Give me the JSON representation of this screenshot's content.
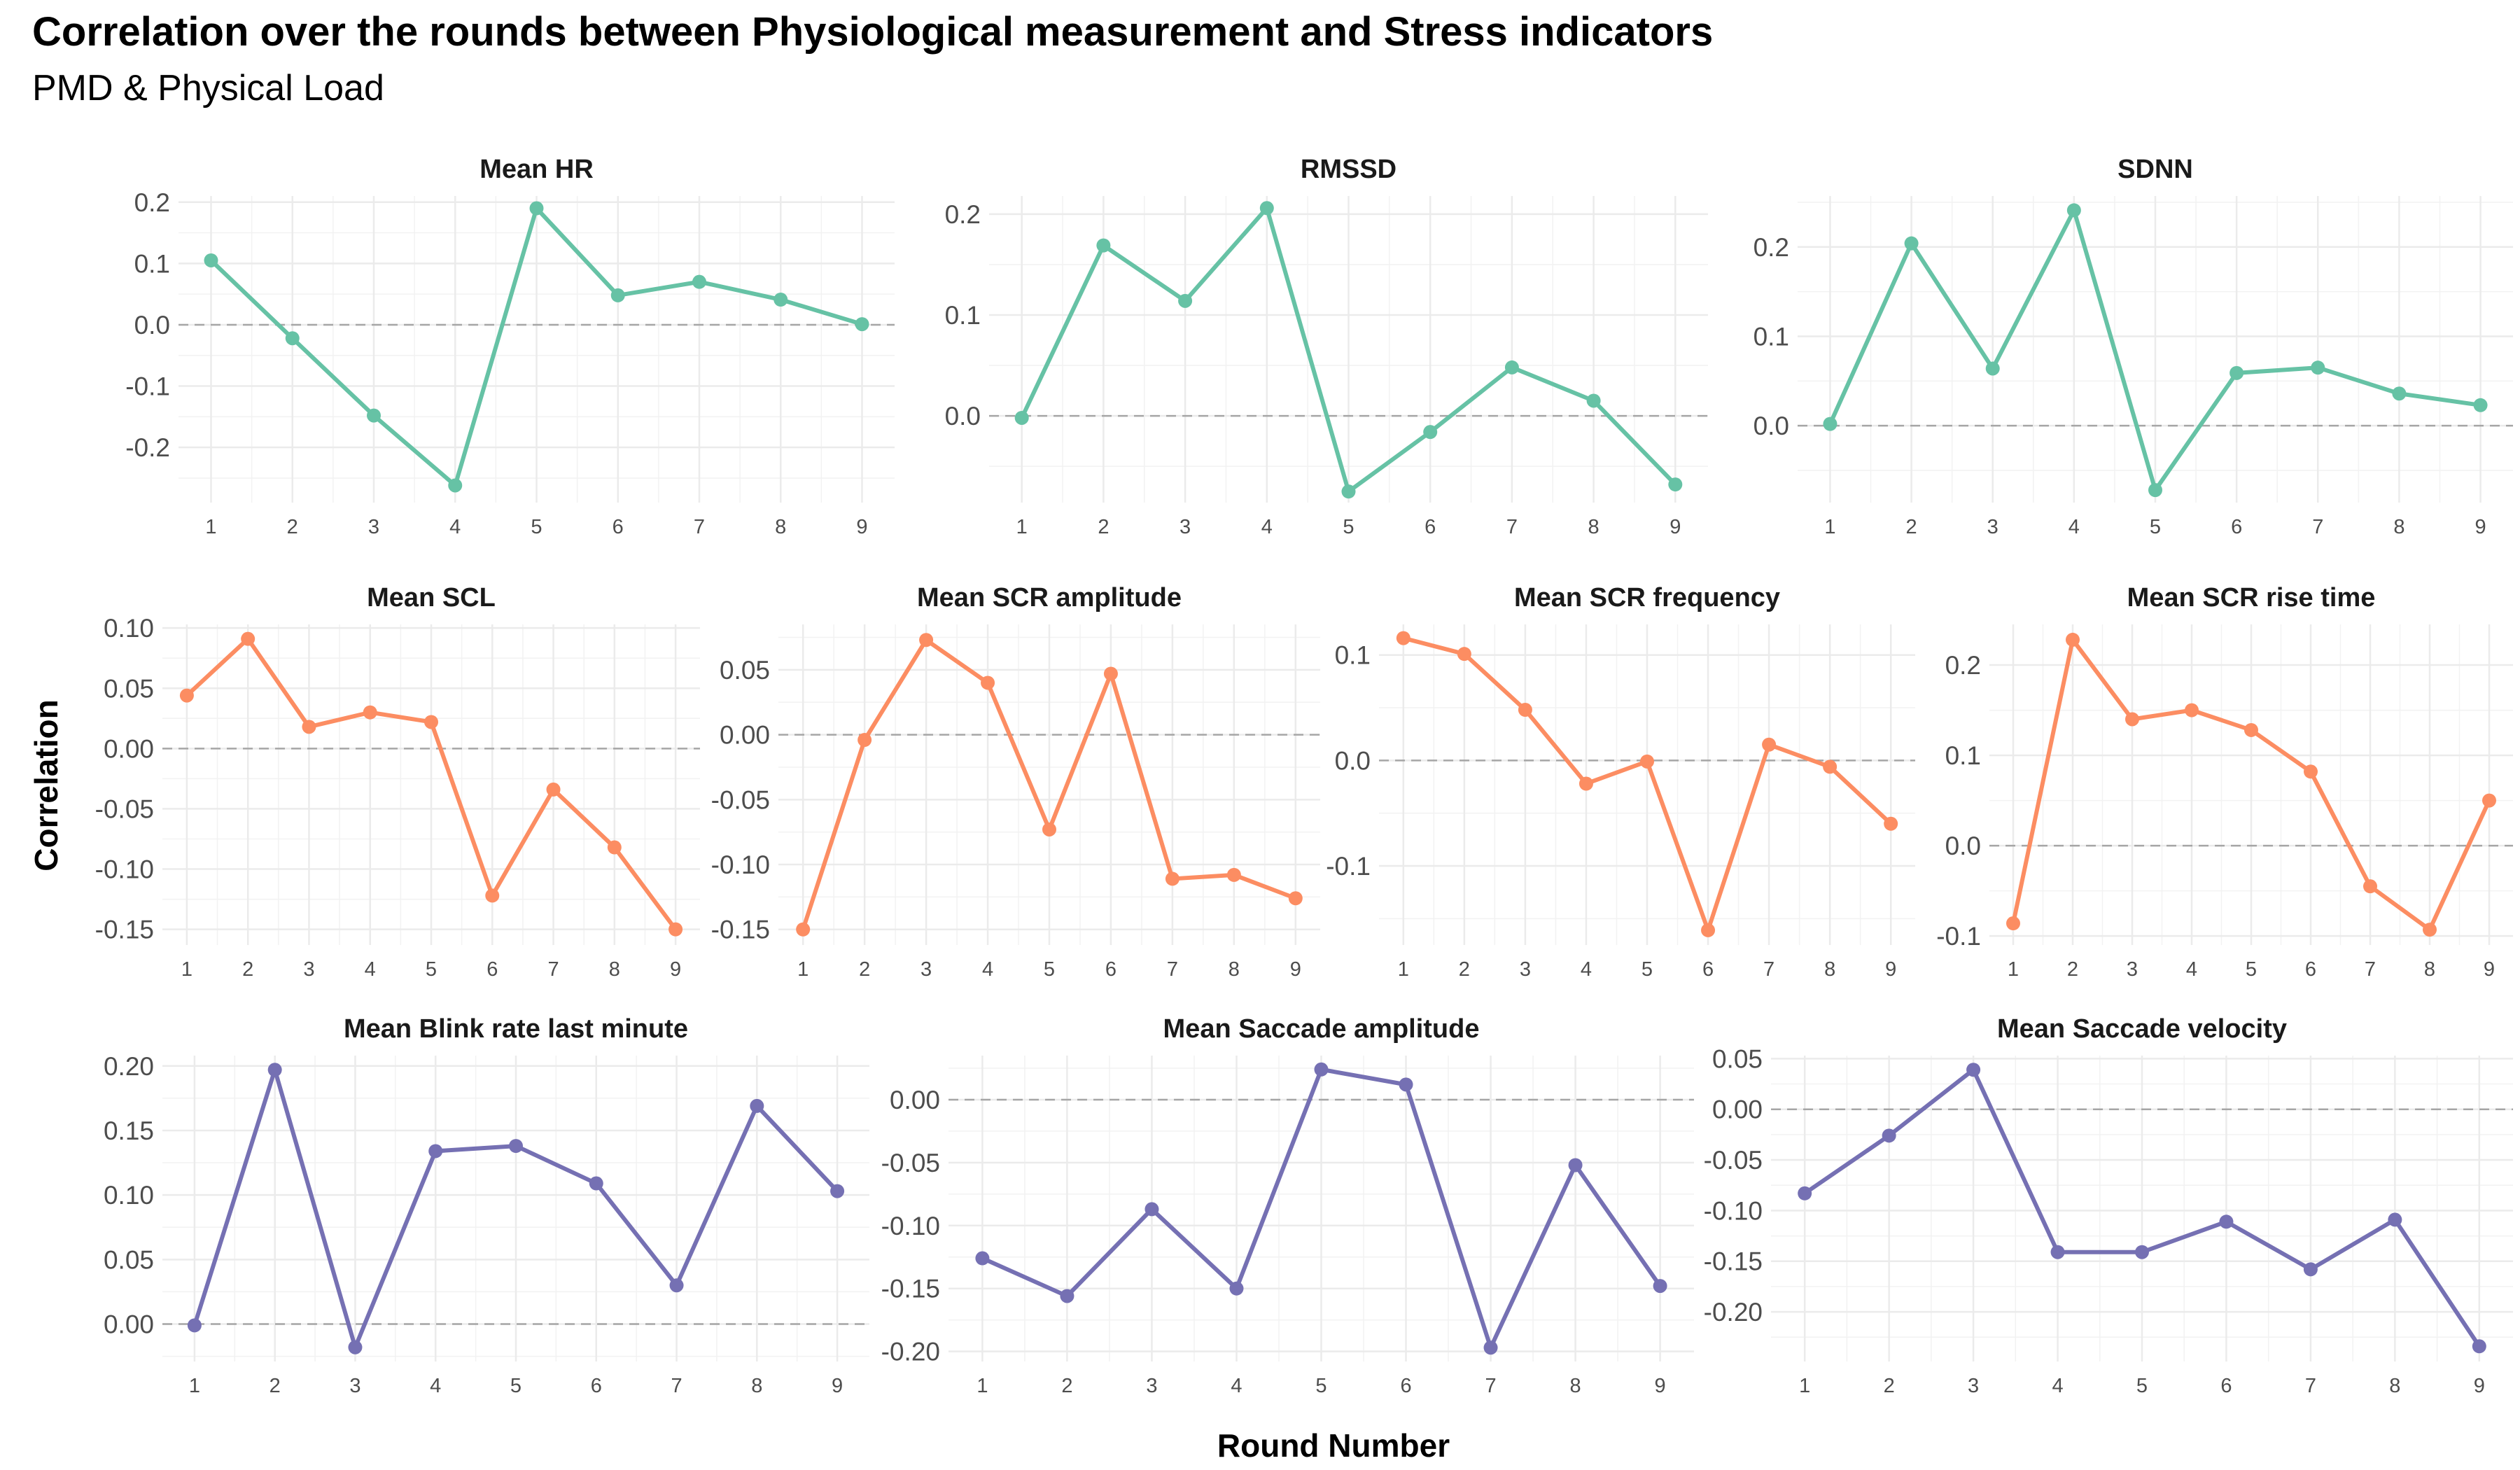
{
  "title": "Correlation over the rounds between Physiological measurement and Stress indicators",
  "subtitle": "PMD & Physical Load",
  "xlabel": "Round Number",
  "ylabel": "Correlation",
  "colors": {
    "green": "#66c2a5",
    "orange": "#fc8d62",
    "purple": "#7570b3",
    "grid": "#ebebeb",
    "zero_line": "#a6a6a6"
  },
  "chart_data": [
    {
      "type": "line",
      "title": "Mean HR",
      "color": "#66c2a5",
      "x": [
        1,
        2,
        3,
        4,
        5,
        6,
        7,
        8,
        9
      ],
      "values": [
        0.105,
        -0.022,
        -0.148,
        -0.262,
        0.19,
        0.048,
        0.07,
        0.041,
        0.001
      ],
      "ylim": [
        -0.29,
        0.21
      ],
      "yticks": [
        -0.2,
        -0.1,
        0.0,
        0.1,
        0.2
      ],
      "ytick_labels": [
        "-0.2",
        "-0.1",
        "0.0",
        "0.1",
        "0.2"
      ]
    },
    {
      "type": "line",
      "title": "RMSSD",
      "color": "#66c2a5",
      "x": [
        1,
        2,
        3,
        4,
        5,
        6,
        7,
        8,
        9
      ],
      "values": [
        -0.002,
        0.169,
        0.114,
        0.206,
        -0.075,
        -0.016,
        0.048,
        0.015,
        -0.068
      ],
      "ylim": [
        -0.086,
        0.218
      ],
      "yticks": [
        0.0,
        0.1,
        0.2
      ],
      "ytick_labels": [
        "0.0",
        "0.1",
        "0.2"
      ]
    },
    {
      "type": "line",
      "title": "SDNN",
      "color": "#66c2a5",
      "x": [
        1,
        2,
        3,
        4,
        5,
        6,
        7,
        8,
        9
      ],
      "values": [
        0.002,
        0.204,
        0.064,
        0.241,
        -0.072,
        0.059,
        0.065,
        0.036,
        0.023
      ],
      "ylim": [
        -0.086,
        0.257
      ],
      "yticks": [
        0.0,
        0.1,
        0.2
      ],
      "ytick_labels": [
        "0.0",
        "0.1",
        "0.2"
      ]
    },
    {
      "type": "line",
      "title": "Mean SCL",
      "color": "#fc8d62",
      "x": [
        1,
        2,
        3,
        4,
        5,
        6,
        7,
        8,
        9
      ],
      "values": [
        0.044,
        0.091,
        0.018,
        0.03,
        0.022,
        -0.122,
        -0.034,
        -0.082,
        -0.15
      ],
      "ylim": [
        -0.163,
        0.103
      ],
      "yticks": [
        -0.15,
        -0.1,
        -0.05,
        0.0,
        0.05,
        0.1
      ],
      "ytick_labels": [
        "-0.15",
        "-0.10",
        "-0.05",
        "0.00",
        "0.05",
        "0.10"
      ]
    },
    {
      "type": "line",
      "title": "Mean SCR amplitude",
      "color": "#fc8d62",
      "x": [
        1,
        2,
        3,
        4,
        5,
        6,
        7,
        8,
        9
      ],
      "values": [
        -0.15,
        -0.004,
        0.073,
        0.04,
        -0.073,
        0.047,
        -0.111,
        -0.108,
        -0.126
      ],
      "ylim": [
        -0.162,
        0.085
      ],
      "yticks": [
        -0.15,
        -0.1,
        -0.05,
        0.0,
        0.05
      ],
      "ytick_labels": [
        "-0.15",
        "-0.10",
        "-0.05",
        "0.00",
        "0.05"
      ]
    },
    {
      "type": "line",
      "title": "Mean SCR frequency",
      "color": "#fc8d62",
      "x": [
        1,
        2,
        3,
        4,
        5,
        6,
        7,
        8,
        9
      ],
      "values": [
        0.116,
        0.101,
        0.048,
        -0.022,
        -0.001,
        -0.161,
        0.015,
        -0.006,
        -0.06
      ],
      "ylim": [
        -0.175,
        0.129
      ],
      "yticks": [
        -0.1,
        0.0,
        0.1
      ],
      "ytick_labels": [
        "-0.1",
        "0.0",
        "0.1"
      ]
    },
    {
      "type": "line",
      "title": "Mean SCR rise time",
      "color": "#fc8d62",
      "x": [
        1,
        2,
        3,
        4,
        5,
        6,
        7,
        8,
        9
      ],
      "values": [
        -0.086,
        0.228,
        0.14,
        0.15,
        0.128,
        0.082,
        -0.045,
        -0.093,
        0.05
      ],
      "ylim": [
        -0.11,
        0.245
      ],
      "yticks": [
        -0.1,
        0.0,
        0.1,
        0.2
      ],
      "ytick_labels": [
        "-0.1",
        "0.0",
        "0.1",
        "0.2"
      ]
    },
    {
      "type": "line",
      "title": "Mean Blink rate last minute",
      "color": "#7570b3",
      "x": [
        1,
        2,
        3,
        4,
        5,
        6,
        7,
        8,
        9
      ],
      "values": [
        -0.001,
        0.197,
        -0.018,
        0.134,
        0.138,
        0.109,
        0.03,
        0.169,
        0.103
      ],
      "ylim": [
        -0.029,
        0.208
      ],
      "yticks": [
        0.0,
        0.05,
        0.1,
        0.15,
        0.2
      ],
      "ytick_labels": [
        "0.00",
        "0.05",
        "0.10",
        "0.15",
        "0.20"
      ]
    },
    {
      "type": "line",
      "title": "Mean Saccade amplitude",
      "color": "#7570b3",
      "x": [
        1,
        2,
        3,
        4,
        5,
        6,
        7,
        8,
        9
      ],
      "values": [
        -0.126,
        -0.156,
        -0.087,
        -0.15,
        0.024,
        0.012,
        -0.197,
        -0.052,
        -0.148
      ],
      "ylim": [
        -0.208,
        0.035
      ],
      "yticks": [
        -0.2,
        -0.15,
        -0.1,
        -0.05,
        0.0
      ],
      "ytick_labels": [
        "-0.20",
        "-0.15",
        "-0.10",
        "-0.05",
        "0.00"
      ]
    },
    {
      "type": "line",
      "title": "Mean Saccade velocity",
      "color": "#7570b3",
      "x": [
        1,
        2,
        3,
        4,
        5,
        6,
        7,
        8,
        9
      ],
      "values": [
        -0.083,
        -0.026,
        0.039,
        -0.141,
        -0.141,
        -0.111,
        -0.158,
        -0.109,
        -0.234
      ],
      "ylim": [
        -0.249,
        0.053
      ],
      "yticks": [
        -0.2,
        -0.15,
        -0.1,
        -0.05,
        0.0,
        0.05
      ],
      "ytick_labels": [
        "-0.20",
        "-0.15",
        "-0.10",
        "-0.05",
        "0.00",
        "0.05"
      ]
    }
  ]
}
